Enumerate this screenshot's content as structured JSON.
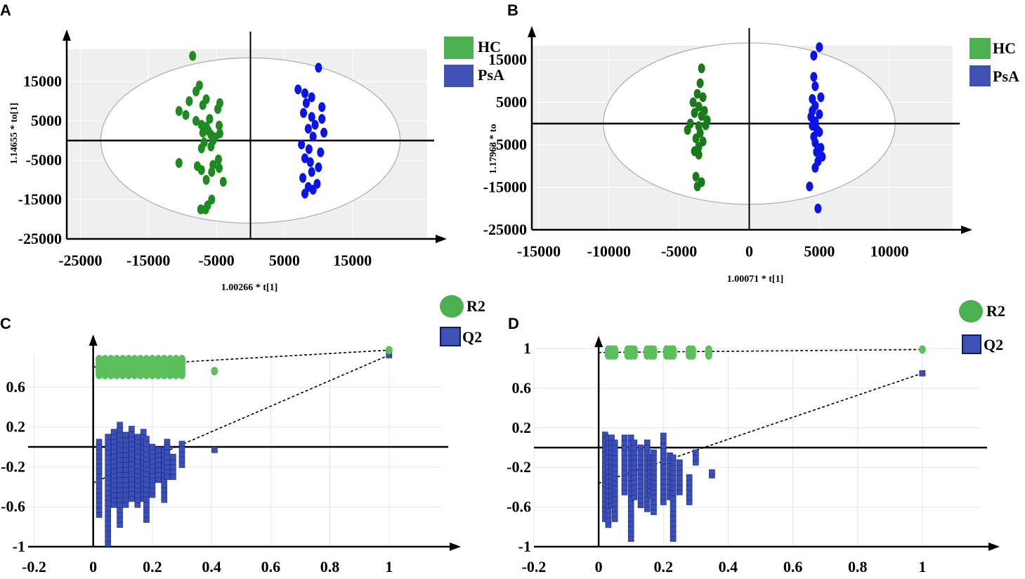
{
  "colors": {
    "hc_a": "#1f8a1f",
    "psa_a": "#0a14e6",
    "hc_b": "#1a7a1a",
    "psa_b": "#0a14e6",
    "r2": "#5bbf5b",
    "q2": "#3a4fb8",
    "legend_hc": "#4caf50",
    "legend_psa": "#3f51b5"
  },
  "chart_data": [
    {
      "panel": "A",
      "type": "scatter",
      "xlabel": "1.00266 * t[1]",
      "ylabel": "1.14655 * to[1]",
      "xlim": [
        -27000,
        27000
      ],
      "ylim": [
        -25000,
        25000
      ],
      "xticks": [
        "-25000",
        "-15000",
        "-5000",
        "5000",
        "15000"
      ],
      "yticks": [
        "15000",
        "5000",
        "-5000",
        "-15000",
        "-25000"
      ],
      "ellipse": {
        "cx": 0,
        "cy": 0,
        "rx": 22000,
        "ry": 21000
      },
      "legend": [
        "HC",
        "PsA"
      ],
      "series": [
        {
          "name": "HC",
          "points": [
            [
              -8500,
              21500
            ],
            [
              -10500,
              7500
            ],
            [
              -9000,
              10000
            ],
            [
              -8000,
              12500
            ],
            [
              -7500,
              14000
            ],
            [
              -9500,
              6500
            ],
            [
              -7000,
              9000
            ],
            [
              -6500,
              10500
            ],
            [
              -4500,
              9500
            ],
            [
              -4800,
              8000
            ],
            [
              -8000,
              5000
            ],
            [
              -7200,
              4000
            ],
            [
              -6000,
              5500
            ],
            [
              -6200,
              2500
            ],
            [
              -5800,
              1500
            ],
            [
              -6500,
              3500
            ],
            [
              -7000,
              2000
            ],
            [
              -4600,
              3800
            ],
            [
              -4500,
              1800
            ],
            [
              -5500,
              0
            ],
            [
              -6800,
              -500
            ],
            [
              -5200,
              800
            ],
            [
              -5800,
              -1500
            ],
            [
              -7200,
              -2000
            ],
            [
              -4700,
              -4800
            ],
            [
              -5500,
              -6200
            ],
            [
              -7800,
              -6500
            ],
            [
              -10500,
              -5700
            ],
            [
              -7200,
              -7500
            ],
            [
              -5700,
              -8000
            ],
            [
              -4600,
              -7000
            ],
            [
              -6500,
              -10000
            ],
            [
              -4000,
              -10500
            ],
            [
              -5700,
              -15000
            ],
            [
              -6300,
              -16500
            ],
            [
              -6600,
              -17500
            ],
            [
              -7300,
              -17500
            ]
          ]
        },
        {
          "name": "PsA",
          "points": [
            [
              10000,
              18500
            ],
            [
              7000,
              13000
            ],
            [
              8000,
              12000
            ],
            [
              9000,
              11000
            ],
            [
              10500,
              8500
            ],
            [
              8200,
              9500
            ],
            [
              7800,
              7000
            ],
            [
              9000,
              6000
            ],
            [
              10500,
              5500
            ],
            [
              9500,
              4000
            ],
            [
              8500,
              3000
            ],
            [
              10800,
              2000
            ],
            [
              9200,
              1000
            ],
            [
              7500,
              -1000
            ],
            [
              8600,
              -2200
            ],
            [
              10300,
              -3000
            ],
            [
              8000,
              -4500
            ],
            [
              8800,
              -5500
            ],
            [
              10000,
              -6800
            ],
            [
              9000,
              -8000
            ],
            [
              7700,
              -9500
            ],
            [
              9800,
              -11000
            ],
            [
              8500,
              -11800
            ],
            [
              9200,
              -12500
            ],
            [
              8000,
              -13500
            ]
          ]
        }
      ]
    },
    {
      "panel": "B",
      "type": "scatter",
      "xlabel": "1.00071 * t[1]",
      "ylabel": "1.17963 * to",
      "xlim": [
        -15500,
        15000
      ],
      "ylim": [
        -25000,
        20000
      ],
      "xticks": [
        "-15000",
        "-10000",
        "-5000",
        "0",
        "5000",
        "10000"
      ],
      "yticks": [
        "15000",
        "5000",
        "-5000",
        "-15000",
        "-25000"
      ],
      "ellipse": {
        "cx": 0,
        "cy": 0,
        "rx": 10400,
        "ry": 19000
      },
      "legend": [
        "HC",
        "PsA"
      ],
      "series": [
        {
          "name": "HC",
          "points": [
            [
              -3400,
              13000
            ],
            [
              -3500,
              9500
            ],
            [
              -3700,
              7000
            ],
            [
              -3300,
              6200
            ],
            [
              -4000,
              5000
            ],
            [
              -3600,
              4000
            ],
            [
              -3200,
              3000
            ],
            [
              -3900,
              2500
            ],
            [
              -3400,
              1800
            ],
            [
              -3000,
              800
            ],
            [
              -4200,
              0
            ],
            [
              -3600,
              -600
            ],
            [
              -3100,
              -400
            ],
            [
              -4400,
              -1500
            ],
            [
              -3500,
              -2200
            ],
            [
              -3800,
              -3500
            ],
            [
              -3300,
              -4200
            ],
            [
              -3600,
              -5500
            ],
            [
              -3900,
              -6500
            ],
            [
              -3600,
              -7300
            ],
            [
              -3800,
              -12500
            ],
            [
              -3400,
              -13800
            ],
            [
              -3700,
              -14800
            ]
          ]
        },
        {
          "name": "PsA",
          "points": [
            [
              5000,
              18000
            ],
            [
              4600,
              16000
            ],
            [
              4600,
              11000
            ],
            [
              4700,
              8800
            ],
            [
              5100,
              6200
            ],
            [
              4500,
              5800
            ],
            [
              4700,
              4200
            ],
            [
              4500,
              3000
            ],
            [
              5000,
              2200
            ],
            [
              4400,
              1600
            ],
            [
              4700,
              500
            ],
            [
              4500,
              -500
            ],
            [
              4800,
              -1200
            ],
            [
              5000,
              -2000
            ],
            [
              4600,
              -3100
            ],
            [
              4700,
              -4500
            ],
            [
              5100,
              -5700
            ],
            [
              4800,
              -6700
            ],
            [
              5200,
              -7800
            ],
            [
              4900,
              -8900
            ],
            [
              4700,
              -10400
            ],
            [
              4300,
              -14800
            ],
            [
              4900,
              -20000
            ]
          ]
        }
      ]
    },
    {
      "panel": "C",
      "type": "scatter",
      "xlabel": "",
      "ylabel": "",
      "xlim": [
        -0.22,
        1.2
      ],
      "ylim": [
        -1.0,
        1.0
      ],
      "xticks": [
        "-0.2",
        "0",
        "0.2",
        "0.4",
        "0.6",
        "0.8",
        "1"
      ],
      "yticks": [
        "0.6",
        "0.2",
        "-0.2",
        "-0.6",
        "-1"
      ],
      "legend": [
        "R2",
        "Q2"
      ],
      "r2_intercept": 0.8,
      "q2_intercept": -0.36,
      "series": [
        {
          "name": "R2",
          "x_columns": [
            0.02,
            0.04,
            0.06,
            0.08,
            0.1,
            0.12,
            0.14,
            0.16,
            0.18,
            0.2,
            0.22,
            0.24,
            0.26,
            0.28,
            0.3
          ],
          "y_low": 0.72,
          "y_high": 0.88,
          "extra": [
            [
              0.41,
              0.76
            ],
            [
              1,
              0.97
            ]
          ]
        },
        {
          "name": "Q2",
          "columns": [
            [
              0.02,
              -0.68,
              0.05
            ],
            [
              0.05,
              -0.97,
              0.1
            ],
            [
              0.07,
              -0.58,
              0.15
            ],
            [
              0.09,
              -0.78,
              0.22
            ],
            [
              0.11,
              -0.58,
              0.12
            ],
            [
              0.13,
              -0.52,
              0.18
            ],
            [
              0.15,
              -0.58,
              0.1
            ],
            [
              0.17,
              -0.52,
              0.15
            ],
            [
              0.18,
              -0.73,
              0.08
            ],
            [
              0.2,
              -0.48,
              0.0
            ],
            [
              0.22,
              -0.33,
              -0.03
            ],
            [
              0.24,
              -0.53,
              -0.03
            ],
            [
              0.25,
              -0.3,
              0.05
            ],
            [
              0.27,
              -0.3,
              -0.1
            ],
            [
              0.3,
              -0.18,
              0.03
            ],
            [
              0.41,
              -0.03,
              -0.03
            ],
            [
              1,
              0.92,
              0.92
            ]
          ]
        }
      ]
    },
    {
      "panel": "D",
      "type": "scatter",
      "xlabel": "",
      "ylabel": "",
      "xlim": [
        -0.2,
        1.2
      ],
      "ylim": [
        -1.0,
        1.0
      ],
      "xticks": [
        "-0.2",
        "0",
        "0.2",
        "0.4",
        "0.6",
        "0.8",
        "1"
      ],
      "yticks": [
        "1",
        "0.6",
        "0.2",
        "-0.2",
        "-0.6",
        "-1"
      ],
      "legend": [
        "R2",
        "Q2"
      ],
      "r2_intercept": 0.96,
      "q2_intercept": -0.36,
      "series": [
        {
          "name": "R2",
          "x_columns": [
            0.03,
            0.04,
            0.05,
            0.09,
            0.1,
            0.11,
            0.15,
            0.16,
            0.17,
            0.21,
            0.22,
            0.23,
            0.28,
            0.29,
            0.34
          ],
          "y_low": 0.93,
          "y_high": 0.99,
          "extra": [
            [
              1,
              0.99
            ]
          ]
        },
        {
          "name": "Q2",
          "columns": [
            [
              0.02,
              -0.72,
              0.13
            ],
            [
              0.03,
              -0.78,
              0.1
            ],
            [
              0.04,
              -0.58,
              0.1
            ],
            [
              0.05,
              -0.72,
              0.05
            ],
            [
              0.08,
              -0.45,
              0.1
            ],
            [
              0.1,
              -0.92,
              0.1
            ],
            [
              0.11,
              -0.5,
              0.05
            ],
            [
              0.13,
              -0.58,
              0.0
            ],
            [
              0.15,
              -0.62,
              0.05
            ],
            [
              0.16,
              -0.48,
              -0.1
            ],
            [
              0.17,
              -0.65,
              -0.05
            ],
            [
              0.2,
              -0.55,
              0.12
            ],
            [
              0.22,
              -0.5,
              -0.08
            ],
            [
              0.23,
              -0.92,
              -0.1
            ],
            [
              0.25,
              -0.45,
              -0.15
            ],
            [
              0.28,
              -0.55,
              -0.3
            ],
            [
              0.3,
              -0.15,
              -0.05
            ],
            [
              0.35,
              -0.28,
              -0.25
            ],
            [
              1,
              0.75,
              0.75
            ]
          ]
        }
      ]
    }
  ]
}
